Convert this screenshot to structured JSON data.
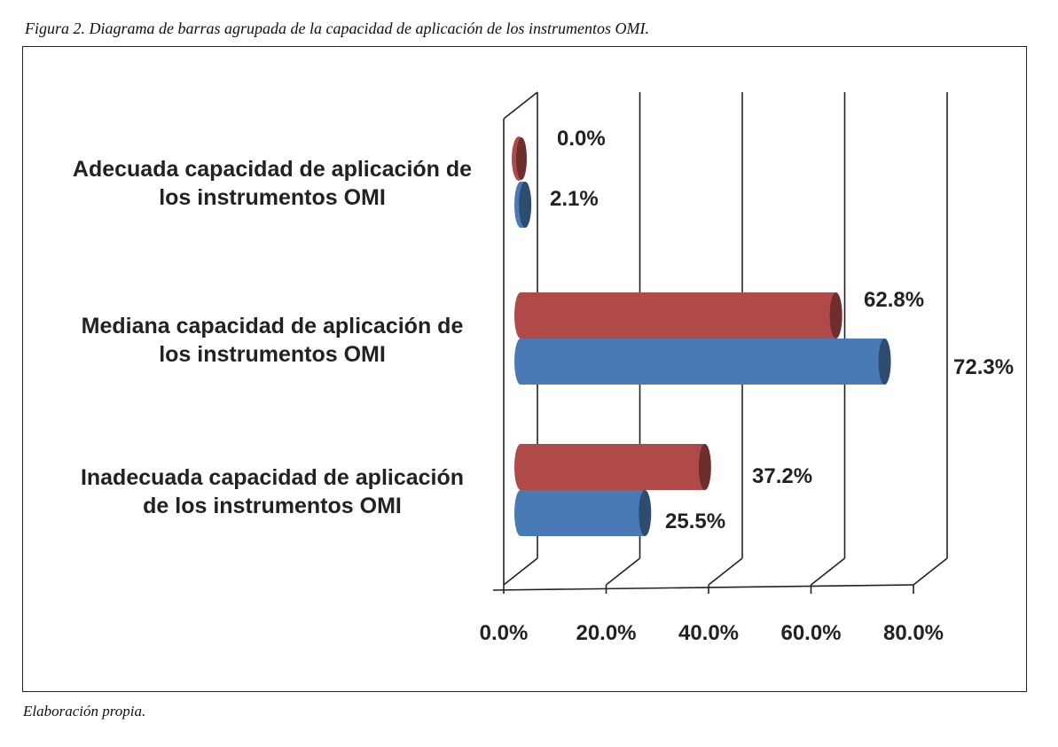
{
  "caption": "Figura 2. Diagrama de barras agrupada de la capacidad de aplicación de los instrumentos OMI.",
  "footnote": "Elaboración propia.",
  "chart_data": {
    "type": "bar",
    "orientation": "horizontal",
    "style": "3d-cylinder",
    "categories": [
      [
        "Adecuada capacidad de aplicación de",
        "los instrumentos OMI"
      ],
      [
        "Mediana capacidad de aplicación de",
        "los instrumentos OMI"
      ],
      [
        "Inadecuada capacidad de aplicación",
        "de los instrumentos OMI"
      ]
    ],
    "series": [
      {
        "color": "#b04a48",
        "values": [
          0.0,
          62.8,
          37.2
        ],
        "labels": [
          "0.0%",
          "62.8%",
          "37.2%"
        ]
      },
      {
        "color": "#4a7ab5",
        "values": [
          2.1,
          72.3,
          25.5
        ],
        "labels": [
          "2.1%",
          "72.3%",
          "25.5%"
        ]
      }
    ],
    "xlim": [
      0,
      80
    ],
    "ticks": [
      "0.0%",
      "20.0%",
      "40.0%",
      "60.0%",
      "80.0%"
    ],
    "grid": true,
    "legend": "none"
  }
}
